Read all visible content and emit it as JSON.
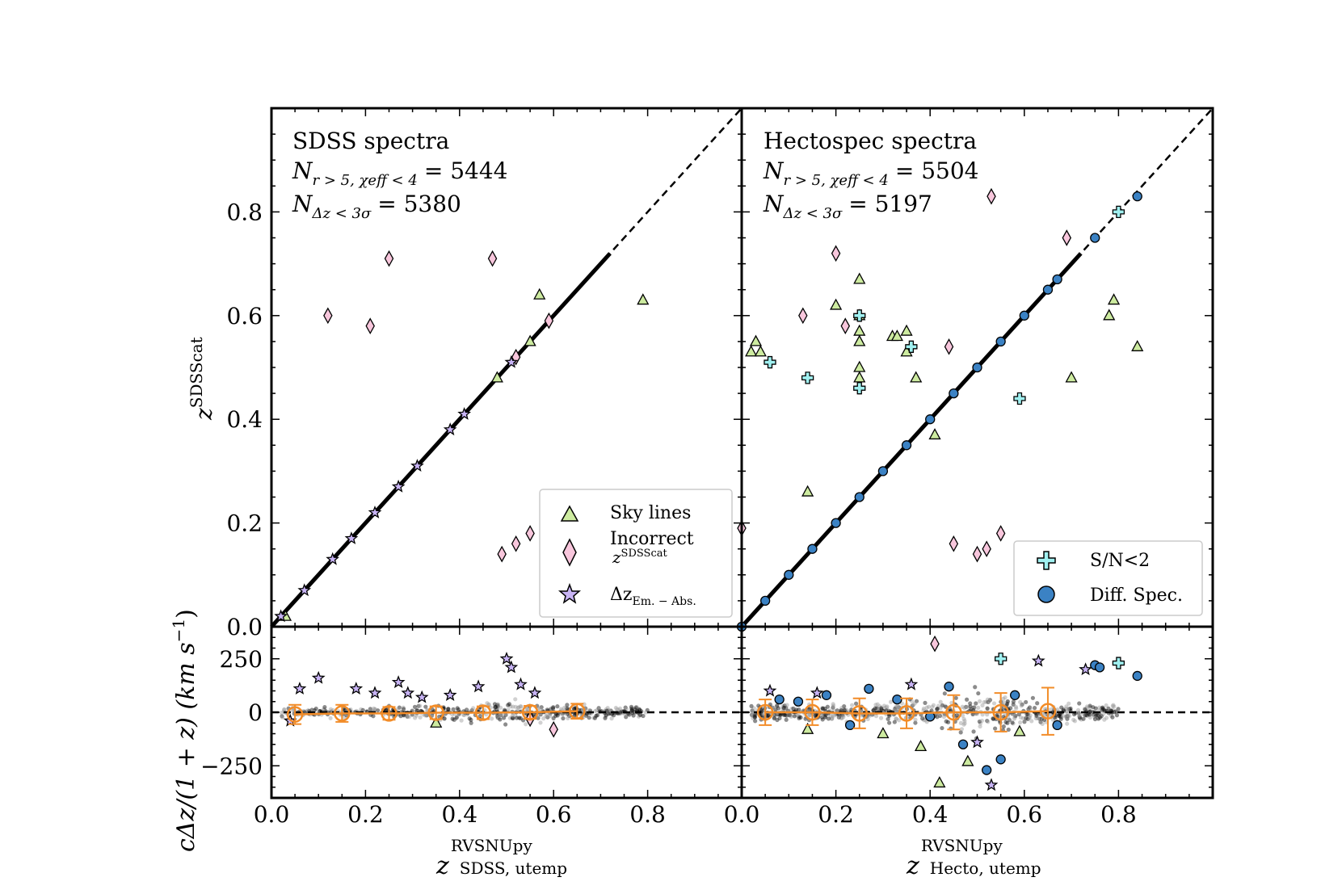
{
  "chart_data": [
    {
      "type": "scatter",
      "panel": "top-left",
      "title": "SDSS spectra",
      "annotation_n1": "N(r>5, χeff<4) = 5444",
      "annotation_n2": "N(Δz<3σ) = 5380",
      "ylabel": "z^SDSScat",
      "xlim": [
        0.0,
        1.0
      ],
      "ylim": [
        0.0,
        1.0
      ],
      "yticks": [
        "0.0",
        "0.2",
        "0.4",
        "0.6",
        "0.8"
      ],
      "one_to_one_line": true,
      "series": [
        {
          "name": "Sky lines",
          "marker": "triangle",
          "color": "#cdeba0",
          "points": [
            [
              0.03,
              0.02
            ],
            [
              0.57,
              0.64
            ],
            [
              0.79,
              0.63
            ],
            [
              0.55,
              0.55
            ],
            [
              0.48,
              0.48
            ]
          ]
        },
        {
          "name": "Incorrect z^SDSScat",
          "marker": "diamond",
          "color": "#f8c6dc",
          "points": [
            [
              0.12,
              0.6
            ],
            [
              0.21,
              0.58
            ],
            [
              0.25,
              0.71
            ],
            [
              0.47,
              0.71
            ],
            [
              0.59,
              0.59
            ],
            [
              0.49,
              0.14
            ],
            [
              0.52,
              0.16
            ],
            [
              0.55,
              0.18
            ],
            [
              0.52,
              0.52
            ]
          ]
        },
        {
          "name": "Δz Em.-Abs.",
          "marker": "star",
          "color": "#c8b4f5",
          "points": [
            [
              0.02,
              0.02
            ],
            [
              0.07,
              0.07
            ],
            [
              0.13,
              0.13
            ],
            [
              0.17,
              0.17
            ],
            [
              0.22,
              0.22
            ],
            [
              0.27,
              0.27
            ],
            [
              0.31,
              0.31
            ],
            [
              0.38,
              0.38
            ],
            [
              0.41,
              0.41
            ],
            [
              0.51,
              0.51
            ]
          ]
        }
      ]
    },
    {
      "type": "scatter",
      "panel": "top-right",
      "title": "Hectospec spectra",
      "annotation_n1": "N(r>5, χeff<4) = 5504",
      "annotation_n2": "N(Δz<3σ) = 5197",
      "xlim": [
        0.0,
        1.0
      ],
      "ylim": [
        0.0,
        1.0
      ],
      "one_to_one_line": true,
      "series": [
        {
          "name": "Sky lines",
          "marker": "triangle",
          "color": "#cdeba0",
          "points": [
            [
              0.02,
              0.53
            ],
            [
              0.03,
              0.55
            ],
            [
              0.04,
              0.53
            ],
            [
              0.14,
              0.26
            ],
            [
              0.2,
              0.62
            ],
            [
              0.25,
              0.67
            ],
            [
              0.25,
              0.6
            ],
            [
              0.25,
              0.57
            ],
            [
              0.25,
              0.55
            ],
            [
              0.25,
              0.5
            ],
            [
              0.25,
              0.48
            ],
            [
              0.32,
              0.56
            ],
            [
              0.33,
              0.56
            ],
            [
              0.35,
              0.57
            ],
            [
              0.35,
              0.53
            ],
            [
              0.37,
              0.48
            ],
            [
              0.41,
              0.37
            ],
            [
              0.7,
              0.48
            ],
            [
              0.78,
              0.6
            ],
            [
              0.79,
              0.63
            ],
            [
              0.84,
              0.54
            ]
          ]
        },
        {
          "name": "Incorrect z^SDSScat",
          "marker": "diamond",
          "color": "#f8c6dc",
          "points": [
            [
              0.0,
              0.19
            ],
            [
              0.13,
              0.6
            ],
            [
              0.2,
              0.72
            ],
            [
              0.22,
              0.58
            ],
            [
              0.44,
              0.54
            ],
            [
              0.45,
              0.16
            ],
            [
              0.5,
              0.14
            ],
            [
              0.52,
              0.15
            ],
            [
              0.55,
              0.18
            ],
            [
              0.53,
              0.83
            ],
            [
              0.69,
              0.75
            ]
          ]
        },
        {
          "name": "S/N<2",
          "marker": "plus",
          "color": "#a0f0f0",
          "points": [
            [
              0.06,
              0.51
            ],
            [
              0.14,
              0.48
            ],
            [
              0.25,
              0.6
            ],
            [
              0.25,
              0.46
            ],
            [
              0.36,
              0.54
            ],
            [
              0.59,
              0.44
            ],
            [
              0.8,
              0.8
            ]
          ]
        },
        {
          "name": "Diff. Spec.",
          "marker": "circle",
          "color": "#3b82c4",
          "points": [
            [
              0.0,
              0.0
            ],
            [
              0.05,
              0.05
            ],
            [
              0.1,
              0.1
            ],
            [
              0.15,
              0.15
            ],
            [
              0.2,
              0.2
            ],
            [
              0.25,
              0.25
            ],
            [
              0.3,
              0.3
            ],
            [
              0.35,
              0.35
            ],
            [
              0.4,
              0.4
            ],
            [
              0.45,
              0.45
            ],
            [
              0.5,
              0.5
            ],
            [
              0.55,
              0.55
            ],
            [
              0.6,
              0.6
            ],
            [
              0.65,
              0.65
            ],
            [
              0.67,
              0.67
            ],
            [
              0.75,
              0.75
            ],
            [
              0.84,
              0.83
            ]
          ]
        }
      ]
    },
    {
      "type": "scatter",
      "panel": "bottom-left",
      "xlabel": "z^RVSNUpy_SDSS,utemp",
      "ylabel": "cΔz/(1+z) (km s^-1)",
      "xlim": [
        0.0,
        1.0
      ],
      "ylim": [
        -400,
        400
      ],
      "xticks": [
        "0.0",
        "0.2",
        "0.4",
        "0.6",
        "0.8"
      ],
      "yticks": [
        "−250",
        "0",
        "250"
      ],
      "binned_median": {
        "x": [
          0.05,
          0.15,
          0.25,
          0.35,
          0.45,
          0.55,
          0.65
        ],
        "y": [
          -10,
          -5,
          -5,
          -2,
          -2,
          0,
          5
        ],
        "yerr": [
          45,
          40,
          30,
          30,
          30,
          30,
          35
        ]
      },
      "series": [
        {
          "name": "Δz Em.-Abs.",
          "marker": "star",
          "color": "#c8b4f5",
          "points": [
            [
              0.04,
              -40
            ],
            [
              0.06,
              110
            ],
            [
              0.1,
              160
            ],
            [
              0.18,
              110
            ],
            [
              0.22,
              90
            ],
            [
              0.27,
              140
            ],
            [
              0.29,
              90
            ],
            [
              0.32,
              70
            ],
            [
              0.38,
              80
            ],
            [
              0.44,
              120
            ],
            [
              0.5,
              250
            ],
            [
              0.51,
              210
            ],
            [
              0.53,
              130
            ],
            [
              0.56,
              90
            ]
          ]
        },
        {
          "name": "Incorrect z^SDSScat",
          "marker": "diamond",
          "color": "#f8c6dc",
          "points": [
            [
              0.55,
              -30
            ],
            [
              0.6,
              -80
            ]
          ]
        },
        {
          "name": "Sky lines",
          "marker": "triangle",
          "color": "#cdeba0",
          "points": [
            [
              0.35,
              -50
            ]
          ]
        }
      ]
    },
    {
      "type": "scatter",
      "panel": "bottom-right",
      "xlabel": "z^RVSNUpy_Hecto,utemp",
      "xlim": [
        0.0,
        1.0
      ],
      "ylim": [
        -400,
        400
      ],
      "xticks": [
        "0.0",
        "0.2",
        "0.4",
        "0.6",
        "0.8"
      ],
      "binned_median": {
        "x": [
          0.05,
          0.15,
          0.25,
          0.35,
          0.45,
          0.55,
          0.65
        ],
        "y": [
          0,
          0,
          -5,
          -5,
          0,
          0,
          5
        ],
        "yerr": [
          60,
          60,
          70,
          70,
          80,
          90,
          110
        ]
      },
      "series": [
        {
          "name": "Diff. Spec.",
          "marker": "circle",
          "color": "#3b82c4",
          "points": [
            [
              0.08,
              60
            ],
            [
              0.12,
              50
            ],
            [
              0.18,
              80
            ],
            [
              0.23,
              -60
            ],
            [
              0.27,
              110
            ],
            [
              0.33,
              60
            ],
            [
              0.4,
              -20
            ],
            [
              0.44,
              120
            ],
            [
              0.47,
              -150
            ],
            [
              0.52,
              -270
            ],
            [
              0.55,
              -220
            ],
            [
              0.58,
              80
            ],
            [
              0.67,
              -60
            ],
            [
              0.75,
              220
            ],
            [
              0.76,
              210
            ],
            [
              0.84,
              170
            ]
          ]
        },
        {
          "name": "S/N<2",
          "marker": "plus",
          "color": "#a0f0f0",
          "points": [
            [
              0.55,
              250
            ],
            [
              0.8,
              230
            ]
          ]
        },
        {
          "name": "Incorrect z^SDSScat",
          "marker": "diamond",
          "color": "#f8c6dc",
          "points": [
            [
              0.41,
              320
            ]
          ]
        },
        {
          "name": "Sky lines",
          "marker": "triangle",
          "color": "#cdeba0",
          "points": [
            [
              0.14,
              -80
            ],
            [
              0.3,
              -100
            ],
            [
              0.38,
              -160
            ],
            [
              0.42,
              -330
            ],
            [
              0.48,
              -230
            ],
            [
              0.59,
              -90
            ]
          ]
        },
        {
          "name": "Δz Em.-Abs.",
          "marker": "star",
          "color": "#c8b4f5",
          "points": [
            [
              0.06,
              100
            ],
            [
              0.16,
              90
            ],
            [
              0.36,
              130
            ],
            [
              0.5,
              -140
            ],
            [
              0.53,
              -340
            ],
            [
              0.63,
              240
            ],
            [
              0.73,
              200
            ]
          ]
        }
      ]
    }
  ],
  "legend_left": {
    "sky": "Sky lines",
    "incorrect": "Incorrect",
    "incorrect_sub": "z",
    "incorrect_sup": "SDSScat",
    "emabs": "Δz",
    "emabs_sub": "Em. − Abs."
  },
  "legend_right": {
    "sn": "S/N<2",
    "diff": "Diff. Spec."
  },
  "labels": {
    "y_top_main": "z",
    "y_top_sup": "SDSScat",
    "y_bottom": "cΔz/(1 + z) (km s",
    "y_bottom_sup": "−1",
    "y_bottom_end": ")",
    "x_left_main": "z",
    "x_left_sup": "RVSNUpy",
    "x_left_sub": "SDSS, utemp",
    "x_right_main": "z",
    "x_right_sup": "RVSNUpy",
    "x_right_sub": "Hecto, utemp",
    "n_left_1": "= 5444",
    "n_left_2": "= 5380",
    "n_right_1": "= 5504",
    "n_right_2": "= 5197",
    "n_sub_1": "r > 5, χeff < 4",
    "n_sub_2": "Δz < 3σ",
    "N": "N"
  }
}
